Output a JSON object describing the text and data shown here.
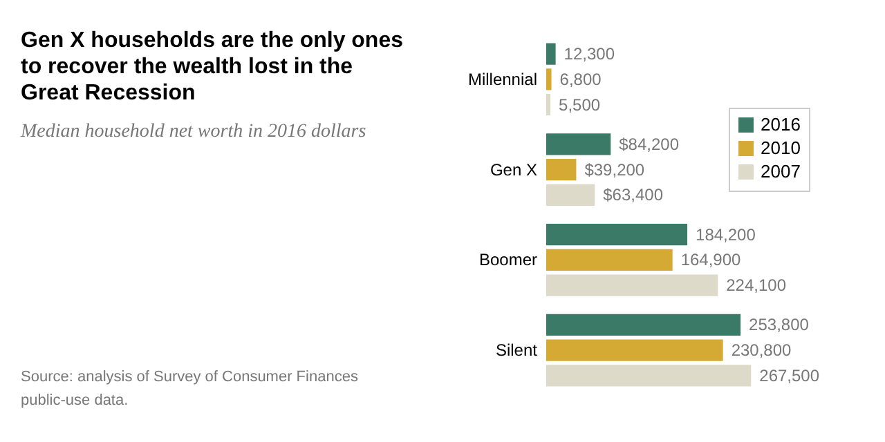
{
  "chart_data": {
    "type": "bar",
    "orientation": "horizontal",
    "title": "Gen X households are the only ones to recover the wealth lost in the Great Recession",
    "subtitle": "Median household net worth in 2016 dollars",
    "categories": [
      "Millennial",
      "Gen X",
      "Boomer",
      "Silent"
    ],
    "series": [
      {
        "name": "2016",
        "color": "#3a7a66",
        "values": [
          12300,
          84200,
          184200,
          253800
        ],
        "value_labels": [
          "12,300",
          "$84,200",
          "184,200",
          "253,800"
        ]
      },
      {
        "name": "2010",
        "color": "#d4a934",
        "values": [
          6800,
          39200,
          164900,
          230800
        ],
        "value_labels": [
          "6,800",
          "$39,200",
          "164,900",
          "230,800"
        ]
      },
      {
        "name": "2007",
        "color": "#dddac9",
        "values": [
          5500,
          63400,
          224100,
          267500
        ],
        "value_labels": [
          "5,500",
          "$63,400",
          "224,100",
          "267,500"
        ]
      }
    ],
    "legend": "top right",
    "grid": false,
    "annotations": [
      "Source: analysis of Survey of Consumer Finances public-use data."
    ]
  }
}
